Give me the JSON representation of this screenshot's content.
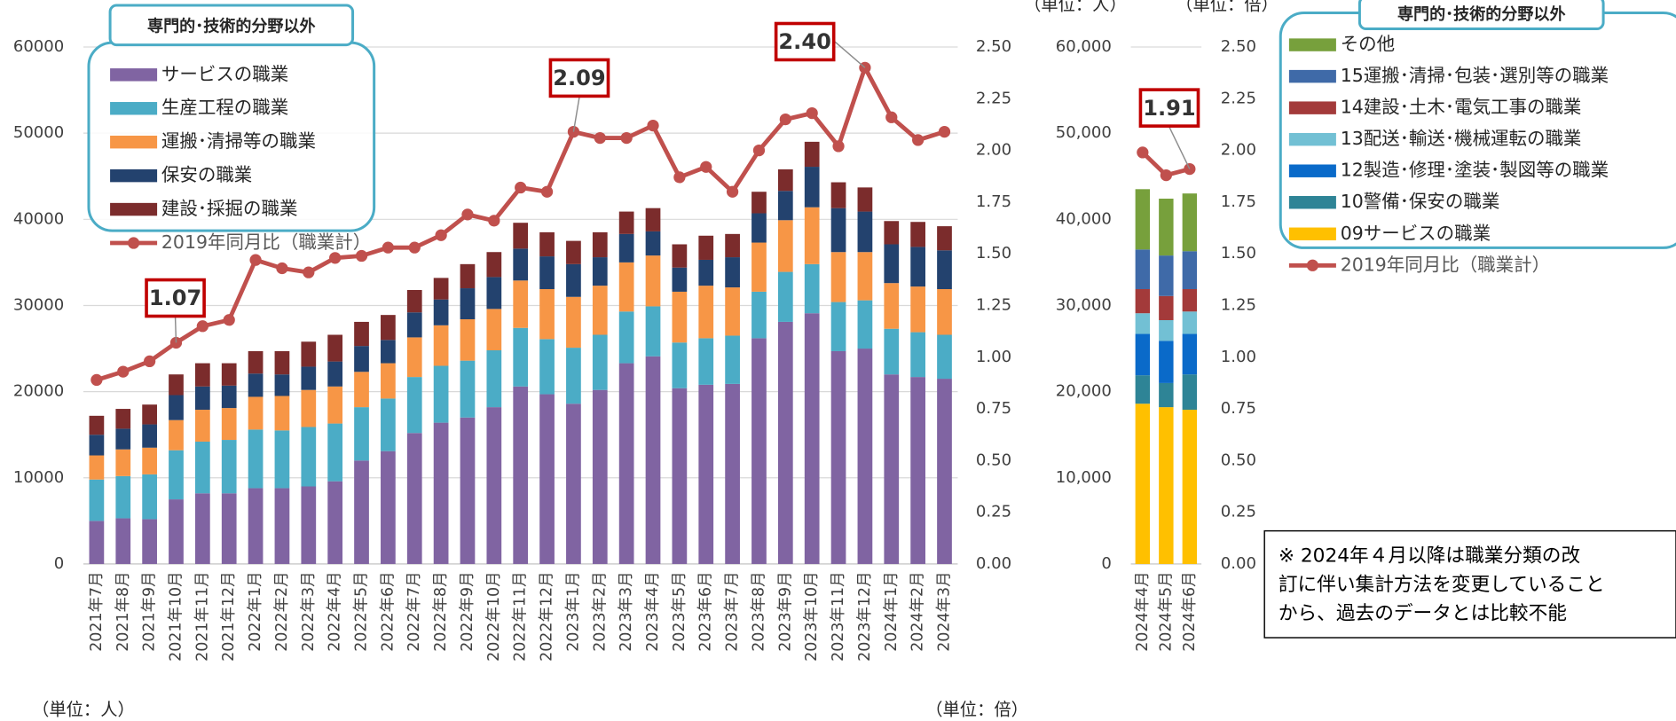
{
  "chart_data": [
    {
      "type": "combo",
      "legend_title": "専門的･技術的分野以外",
      "y_unit": "（単位：人）",
      "y2_unit": "（単位：倍）",
      "categories": [
        "2021年7月",
        "2021年8月",
        "2021年9月",
        "2021年10月",
        "2021年11月",
        "2021年12月",
        "2022年1月",
        "2022年2月",
        "2022年3月",
        "2022年4月",
        "2022年5月",
        "2022年6月",
        "2022年7月",
        "2022年8月",
        "2022年9月",
        "2022年10月",
        "2022年11月",
        "2022年12月",
        "2023年1月",
        "2023年2月",
        "2023年3月",
        "2023年4月",
        "2023年5月",
        "2023年6月",
        "2023年7月",
        "2023年8月",
        "2023年9月",
        "2023年10月",
        "2023年11月",
        "2023年12月",
        "2024年1月",
        "2024年2月",
        "2024年3月"
      ],
      "series": [
        {
          "name": "サービスの職業",
          "color": "#8064a2",
          "values": [
            5000,
            5300,
            5200,
            7500,
            8200,
            8200,
            8800,
            8800,
            9000,
            9600,
            12000,
            13100,
            15200,
            16400,
            17000,
            18200,
            20600,
            19700,
            18600,
            20200,
            23300,
            24100,
            20400,
            20800,
            20900,
            26200,
            28100,
            29100,
            24700,
            25000,
            22000,
            21700,
            21500
          ]
        },
        {
          "name": "生産工程の職業",
          "color": "#4bacc6",
          "values": [
            4800,
            4900,
            5200,
            5700,
            6000,
            6200,
            6800,
            6700,
            6900,
            6700,
            6200,
            6100,
            6500,
            6600,
            6600,
            6600,
            6800,
            6400,
            6500,
            6400,
            6000,
            5800,
            5300,
            5400,
            5600,
            5400,
            5800,
            5700,
            5700,
            5600,
            5300,
            5200,
            5100
          ]
        },
        {
          "name": "運搬･清掃等の職業",
          "color": "#f79646",
          "values": [
            2800,
            3100,
            3100,
            3500,
            3700,
            3700,
            3800,
            4000,
            4300,
            4300,
            4100,
            4100,
            4600,
            4700,
            4800,
            4800,
            5500,
            5800,
            5900,
            5700,
            5700,
            5900,
            5900,
            6100,
            5600,
            5700,
            6000,
            6600,
            5800,
            5600,
            5300,
            5300,
            5300
          ]
        },
        {
          "name": "保安の職業",
          "color": "#23426e",
          "values": [
            2400,
            2400,
            2700,
            2900,
            2700,
            2600,
            2700,
            2500,
            2700,
            2900,
            3000,
            2700,
            2900,
            3000,
            3600,
            3700,
            3700,
            3800,
            3800,
            3300,
            3300,
            2800,
            2800,
            3000,
            3500,
            3400,
            3400,
            4700,
            5100,
            4700,
            4500,
            4600,
            4500
          ]
        },
        {
          "name": "建設･採掘の職業",
          "color": "#7b2c2c",
          "values": [
            2200,
            2300,
            2300,
            2400,
            2700,
            2600,
            2600,
            2700,
            2900,
            3100,
            2800,
            2900,
            2600,
            2500,
            2800,
            2900,
            3000,
            2800,
            2700,
            2900,
            2600,
            2700,
            2700,
            2800,
            2700,
            2500,
            2500,
            2900,
            3000,
            2800,
            2700,
            2900,
            2800
          ]
        },
        {
          "name": "2019年同月比（職業計）",
          "color": "#c0504d",
          "axis": "y2",
          "values": [
            0.89,
            0.93,
            0.98,
            1.07,
            1.15,
            1.18,
            1.47,
            1.43,
            1.41,
            1.48,
            1.49,
            1.53,
            1.53,
            1.59,
            1.69,
            1.66,
            1.82,
            1.8,
            2.09,
            2.06,
            2.06,
            2.12,
            1.87,
            1.92,
            1.8,
            2.0,
            2.15,
            2.18,
            2.02,
            2.4,
            2.16,
            2.05,
            2.09
          ]
        }
      ],
      "annotations": [
        "1.07",
        "2.09",
        "2.40"
      ],
      "ylim": [
        0,
        60000
      ],
      "yticks": [
        0,
        10000,
        20000,
        30000,
        40000,
        50000,
        60000
      ],
      "y2lim": [
        0,
        2.5
      ],
      "y2ticks": [
        {
          "value": 0,
          "label": "0.00"
        },
        {
          "value": 0.25,
          "label": "0.25"
        },
        {
          "value": 0.5,
          "label": "0.50"
        },
        {
          "value": 0.75,
          "label": "0.75"
        },
        {
          "value": 1,
          "label": "1.00"
        },
        {
          "value": 1.25,
          "label": "1.25"
        },
        {
          "value": 1.5,
          "label": "1.50"
        },
        {
          "value": 1.75,
          "label": "1.75"
        },
        {
          "value": 2,
          "label": "2.00"
        },
        {
          "value": 2.25,
          "label": "2.25"
        },
        {
          "value": 2.5,
          "label": "2.50"
        }
      ],
      "grid": true
    },
    {
      "type": "combo",
      "legend_title": "専門的･技術的分野以外",
      "y_unit": "（単位：人）",
      "y2_unit": "（単位：倍）",
      "categories": [
        "2024年4月",
        "2024年5月",
        "2024年6月"
      ],
      "series": [
        {
          "name": "09サービスの職業",
          "color": "#ffc000",
          "values": [
            18600,
            18200,
            17900
          ]
        },
        {
          "name": "10警備･保安の職業",
          "color": "#2e8496",
          "values": [
            3300,
            2800,
            4100
          ]
        },
        {
          "name": "12製造･修理･塗装･製図等の職業",
          "color": "#0a6ac9",
          "values": [
            4800,
            4900,
            4700
          ]
        },
        {
          "name": "13配送･輸送･機械運転の職業",
          "color": "#72c0d4",
          "values": [
            2400,
            2400,
            2600
          ]
        },
        {
          "name": "14建設･土木･電気工事の職業",
          "color": "#a33a3a",
          "values": [
            2800,
            2800,
            2600
          ]
        },
        {
          "name": "15運搬･清掃･包装･選別等の職業",
          "color": "#3f6aa8",
          "values": [
            4600,
            4700,
            4400
          ]
        },
        {
          "name": "その他",
          "color": "#77a03c",
          "values": [
            7000,
            6600,
            6700
          ]
        },
        {
          "name": "2019年同月比（職業計）",
          "color": "#c0504d",
          "axis": "y2",
          "values": [
            1.99,
            1.88,
            1.91
          ]
        }
      ],
      "annotations": [
        "1.91"
      ],
      "ylim": [
        0,
        60000
      ],
      "yticks": [
        0,
        {
          "value": 10000,
          "label": "10,000"
        },
        {
          "value": 20000,
          "label": "20,000"
        },
        {
          "value": 30000,
          "label": "30,000"
        },
        {
          "value": 40000,
          "label": "40,000"
        },
        {
          "value": 50000,
          "label": "50,000"
        },
        {
          "value": 60000,
          "label": "60,000"
        }
      ],
      "y2lim": [
        0,
        2.5
      ],
      "y2ticks": [
        {
          "value": 0,
          "label": "0.00"
        },
        {
          "value": 0.25,
          "label": "0.25"
        },
        {
          "value": 0.5,
          "label": "0.50"
        },
        {
          "value": 0.75,
          "label": "0.75"
        },
        {
          "value": 1,
          "label": "1.00"
        },
        {
          "value": 1.25,
          "label": "1.25"
        },
        {
          "value": 1.5,
          "label": "1.50"
        },
        {
          "value": 1.75,
          "label": "1.75"
        },
        {
          "value": 2,
          "label": "2.00"
        },
        {
          "value": 2.25,
          "label": "2.25"
        },
        {
          "value": 2.5,
          "label": "2.50"
        }
      ],
      "grid": false,
      "note": [
        "※ 2024年４月以降は職業分類の改",
        "訂に伴い集計方法を変更していること",
        "から、過去のデータとは比較不能"
      ]
    }
  ]
}
